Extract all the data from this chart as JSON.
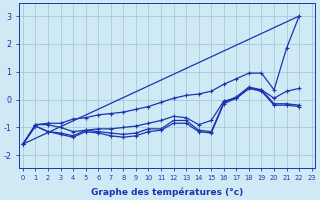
{
  "xlabel": "Graphe des températures (°c)",
  "background_color": "#d0eaf5",
  "grid_color": "#9dc4d8",
  "line_color": "#1a35b0",
  "xlim": [
    -0.3,
    23.3
  ],
  "ylim": [
    -2.45,
    3.45
  ],
  "yticks": [
    -2,
    -1,
    0,
    1,
    2,
    3
  ],
  "xticks": [
    0,
    1,
    2,
    3,
    4,
    5,
    6,
    7,
    8,
    9,
    10,
    11,
    12,
    13,
    14,
    15,
    16,
    17,
    18,
    19,
    20,
    21,
    22,
    23
  ],
  "line_straight": [
    [
      0,
      22
    ],
    [
      -1.6,
      3.0
    ]
  ],
  "line_upper_wiggly": [
    -1.6,
    -0.9,
    -0.85,
    -0.85,
    -0.7,
    -0.65,
    -0.55,
    -0.5,
    -0.45,
    -0.35,
    -0.25,
    -0.1,
    0.05,
    0.15,
    0.2,
    0.3,
    0.55,
    0.75,
    0.95,
    0.95,
    0.35,
    1.85,
    3.0
  ],
  "line_mid_wiggly": [
    -1.6,
    -0.9,
    -0.9,
    -1.0,
    -1.15,
    -1.1,
    -1.05,
    -1.05,
    -1.0,
    -0.95,
    -0.85,
    -0.75,
    -0.6,
    -0.65,
    -0.9,
    -0.75,
    -0.05,
    0.05,
    0.4,
    0.35,
    0.05,
    0.3,
    0.4
  ],
  "line_lower_wiggly": [
    -1.6,
    -0.95,
    -1.15,
    -1.2,
    -1.3,
    -1.1,
    -1.15,
    -1.2,
    -1.25,
    -1.2,
    -1.05,
    -1.05,
    -0.75,
    -0.75,
    -1.1,
    -1.15,
    -0.1,
    0.1,
    0.45,
    0.35,
    -0.15,
    -0.15,
    -0.2
  ],
  "line_bottom_wiggly": [
    -1.6,
    -0.95,
    -1.15,
    -1.25,
    -1.35,
    -1.15,
    -1.2,
    -1.3,
    -1.35,
    -1.3,
    -1.15,
    -1.1,
    -0.85,
    -0.85,
    -1.15,
    -1.2,
    -0.15,
    0.05,
    0.4,
    0.3,
    -0.2,
    -0.2,
    -0.25
  ]
}
